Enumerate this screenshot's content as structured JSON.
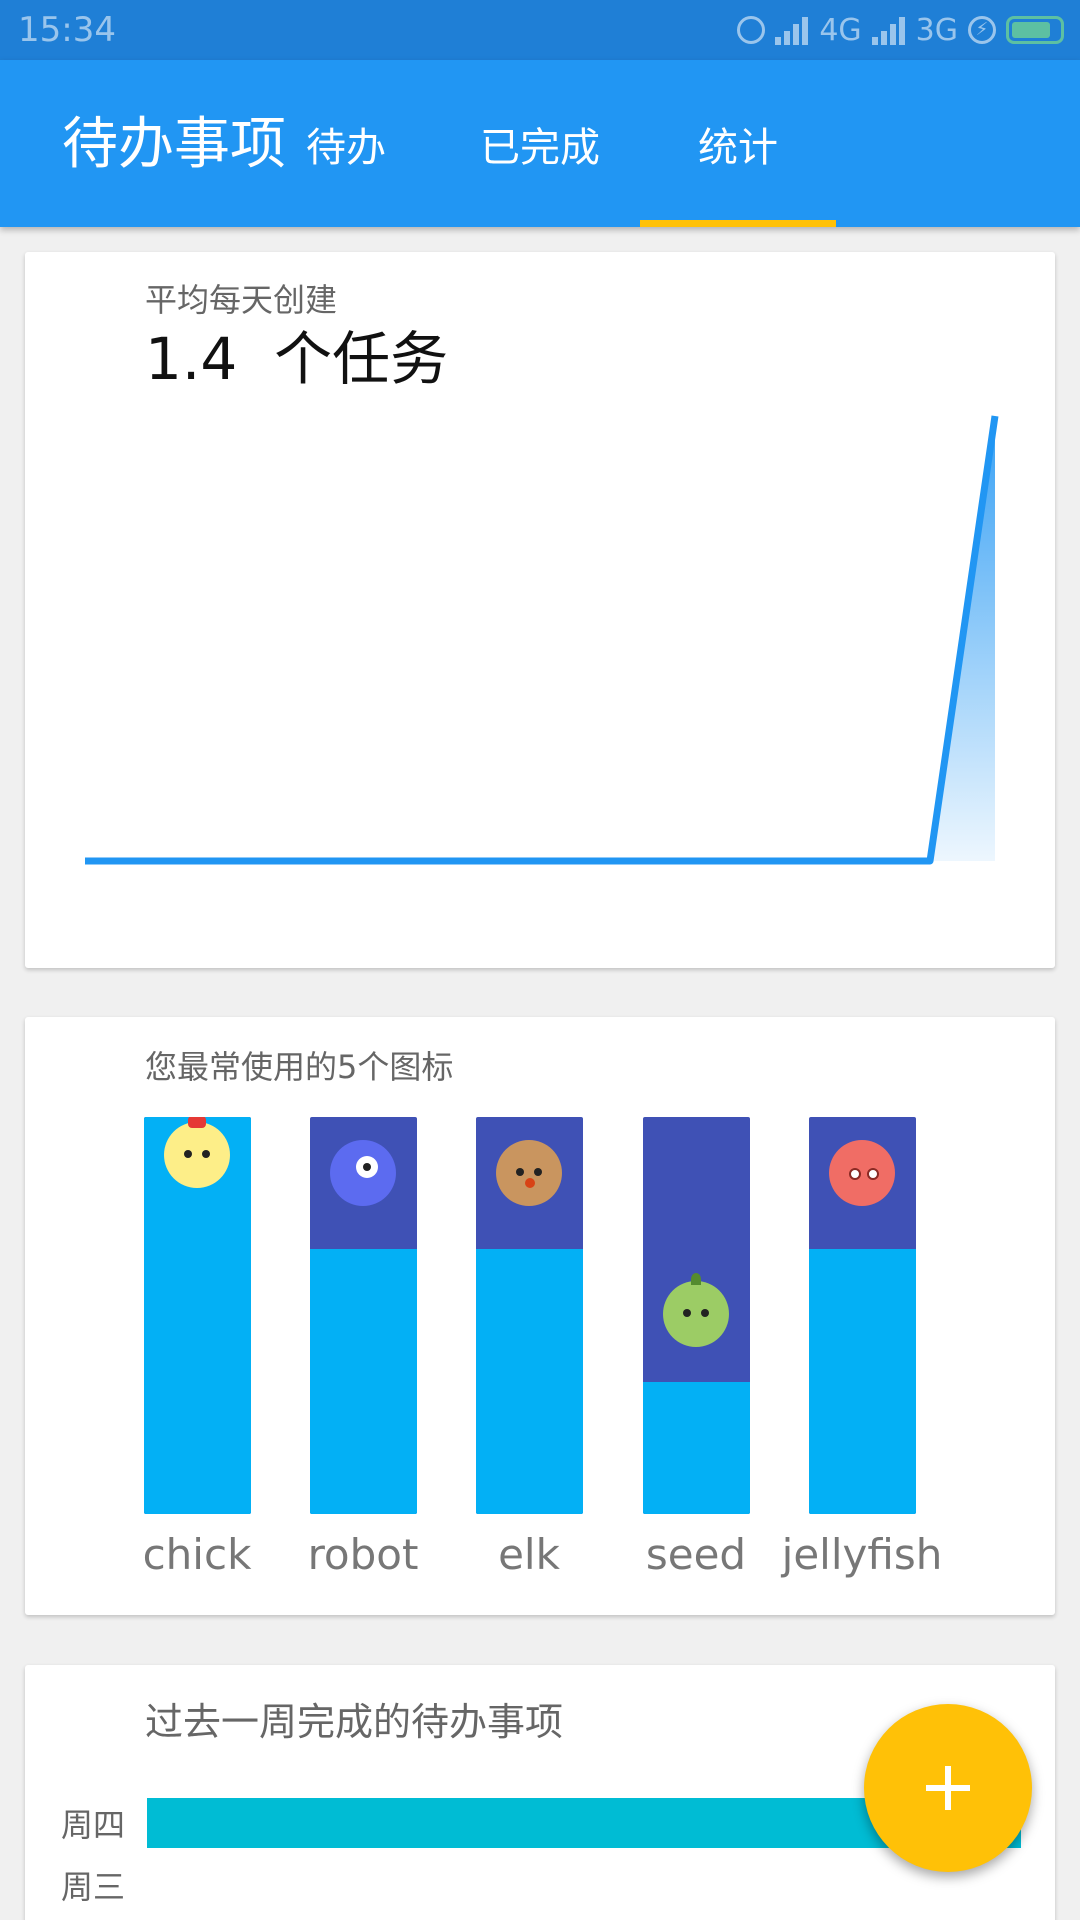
{
  "status_bar": {
    "time": "15:34",
    "network_1": "4G",
    "network_2": "3G",
    "icons": [
      "alarm-icon",
      "signal-icon",
      "signal-icon",
      "charging-icon",
      "battery-icon"
    ]
  },
  "app_bar": {
    "title": "待办事项",
    "tabs": [
      {
        "label": "待办",
        "selected": false
      },
      {
        "label": "已完成",
        "selected": false
      },
      {
        "label": "统计",
        "selected": true
      }
    ],
    "background": "#2196f3",
    "indicator_color": "#ffc107"
  },
  "daily_card": {
    "subtitle": "平均每天创建",
    "value": "1.4",
    "unit": "个任务",
    "chart_data": {
      "type": "area",
      "x": [
        1,
        2,
        3,
        4,
        5,
        6,
        7,
        8,
        9,
        10,
        11,
        12,
        13,
        14,
        15
      ],
      "series": [
        {
          "values": [
            0,
            0,
            0,
            0,
            0,
            0,
            0,
            0,
            0,
            0,
            0,
            0,
            0,
            0,
            1
          ]
        }
      ],
      "title": "",
      "xlabel": "",
      "ylabel": "",
      "grid": false,
      "line_color": "#2196f3"
    }
  },
  "icons_card": {
    "subtitle": "您最常使用的5个图标",
    "chart_data": {
      "type": "bar",
      "categories": [
        "chick",
        "robot",
        "elk",
        "seed",
        "jellyfish"
      ],
      "values": [
        3,
        2,
        2,
        1,
        2
      ],
      "ylim": [
        0,
        3
      ],
      "bar_color": "#03b0f5",
      "track_color": "#3f51b5"
    },
    "icons": [
      "chick-icon",
      "robot-icon",
      "elk-icon",
      "seed-icon",
      "jellyfish-icon"
    ]
  },
  "weekly_card": {
    "subtitle": "过去一周完成的待办事项",
    "days": [
      {
        "label": "周四",
        "value": 1
      },
      {
        "label": "周三",
        "value": 0
      }
    ],
    "bar_color": "#00bcd4"
  },
  "fab": {
    "icon": "plus-icon",
    "color": "#ffc107"
  }
}
